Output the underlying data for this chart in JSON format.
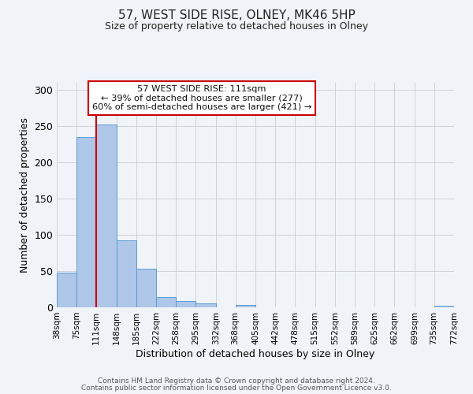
{
  "title": "57, WEST SIDE RISE, OLNEY, MK46 5HP",
  "subtitle": "Size of property relative to detached houses in Olney",
  "xlabel": "Distribution of detached houses by size in Olney",
  "ylabel": "Number of detached properties",
  "bar_edges": [
    38,
    75,
    111,
    148,
    185,
    222,
    258,
    295,
    332,
    368,
    405,
    442,
    478,
    515,
    552,
    589,
    625,
    662,
    699,
    735,
    772
  ],
  "bar_heights": [
    48,
    235,
    252,
    93,
    53,
    14,
    9,
    5,
    0,
    3,
    0,
    0,
    0,
    0,
    0,
    0,
    0,
    0,
    0,
    2
  ],
  "bar_color": "#aec6e8",
  "bar_edgecolor": "#5b9bd5",
  "property_line_x": 111,
  "property_line_color": "#cc0000",
  "ylim": [
    0,
    310
  ],
  "yticks": [
    0,
    50,
    100,
    150,
    200,
    250,
    300
  ],
  "annotation_title": "57 WEST SIDE RISE: 111sqm",
  "annotation_line1": "← 39% of detached houses are smaller (277)",
  "annotation_line2": "60% of semi-detached houses are larger (421) →",
  "annotation_box_color": "#ffffff",
  "annotation_box_edgecolor": "#cc0000",
  "footer1": "Contains HM Land Registry data © Crown copyright and database right 2024.",
  "footer2": "Contains public sector information licensed under the Open Government Licence v3.0.",
  "bg_color": "#f0f4f8"
}
